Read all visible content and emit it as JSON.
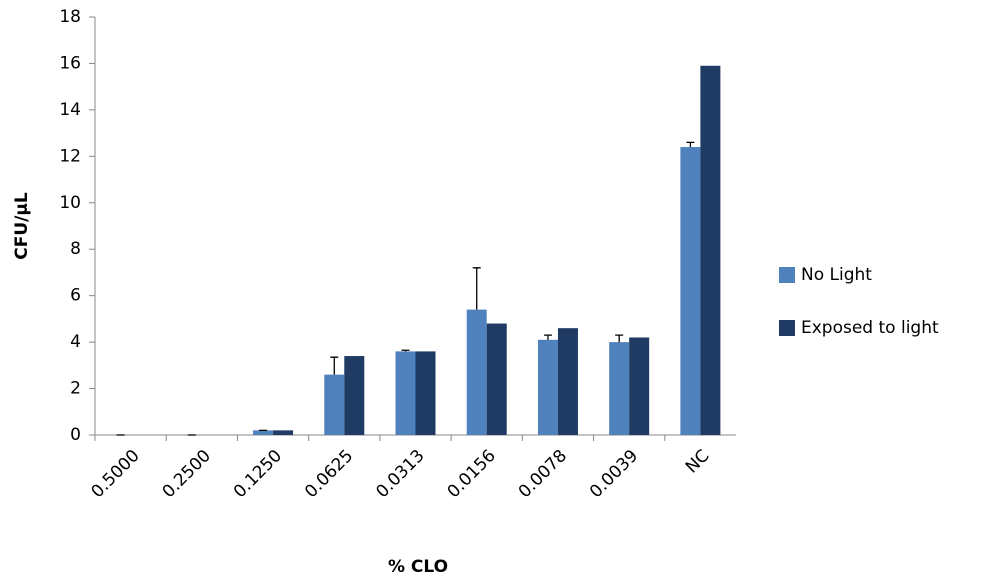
{
  "chart_data": {
    "type": "bar",
    "x_label": "% CLO",
    "y_label": "CFU/µL",
    "categories": [
      "0.5000",
      "0.2500",
      "0.1250",
      "0.0625",
      "0.0313",
      "0.0156",
      "0.0078",
      "0.0039",
      "NC"
    ],
    "series": [
      {
        "name": "No Light",
        "color": "#4f81bd",
        "values": [
          0,
          0,
          0.2,
          2.6,
          3.6,
          5.4,
          4.1,
          4.0,
          12.4
        ],
        "errors": [
          0,
          0,
          0,
          0.75,
          0.05,
          1.8,
          0.2,
          0.3,
          0.2
        ]
      },
      {
        "name": "Exposed to light",
        "color": "#1f3b63",
        "values": [
          0,
          0,
          0.2,
          3.4,
          3.6,
          4.8,
          4.6,
          4.2,
          15.9
        ]
      }
    ],
    "ylim": [
      0,
      18
    ],
    "yticks": [
      0,
      2,
      4,
      6,
      8,
      10,
      12,
      14,
      16,
      18
    ],
    "grid": false,
    "legend": "right"
  }
}
